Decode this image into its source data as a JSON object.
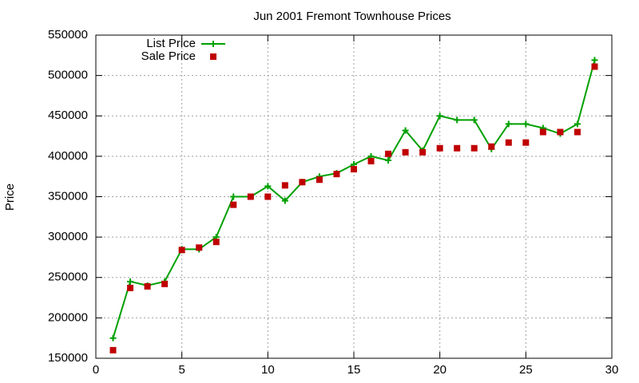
{
  "chart_data": {
    "type": "line",
    "title": "Jun 2001 Fremont Townhouse Prices",
    "ylabel": "Price",
    "x": [
      1,
      2,
      3,
      4,
      5,
      6,
      7,
      8,
      9,
      10,
      11,
      12,
      13,
      14,
      15,
      16,
      17,
      18,
      19,
      20,
      21,
      22,
      23,
      24,
      25,
      26,
      27,
      28,
      29
    ],
    "series": [
      {
        "name": "List Price",
        "color": "#00a000",
        "line": true,
        "marker": "plus",
        "values": [
          175000,
          245000,
          240000,
          245000,
          285000,
          285000,
          300000,
          350000,
          350000,
          363000,
          345000,
          368000,
          375000,
          379000,
          390000,
          400000,
          395000,
          432000,
          407000,
          450000,
          445000,
          445000,
          409000,
          440000,
          440000,
          435000,
          428000,
          440000,
          519000
        ]
      },
      {
        "name": "Sale Price",
        "color": "#c00000",
        "line": false,
        "marker": "square",
        "values": [
          160000,
          237000,
          239000,
          242000,
          284000,
          287000,
          294000,
          340000,
          350000,
          350000,
          364000,
          368000,
          371000,
          378000,
          384000,
          394000,
          403000,
          405000,
          405000,
          410000,
          410000,
          410000,
          412000,
          417000,
          417000,
          430000,
          430000,
          430000,
          511000
        ]
      }
    ],
    "xlim": [
      0,
      30
    ],
    "xticks": [
      0,
      5,
      10,
      15,
      20,
      25,
      30
    ],
    "ylim": [
      150000,
      550000
    ],
    "yticks": [
      150000,
      200000,
      250000,
      300000,
      350000,
      400000,
      450000,
      500000,
      550000
    ],
    "grid": true,
    "legend": "top-left"
  }
}
